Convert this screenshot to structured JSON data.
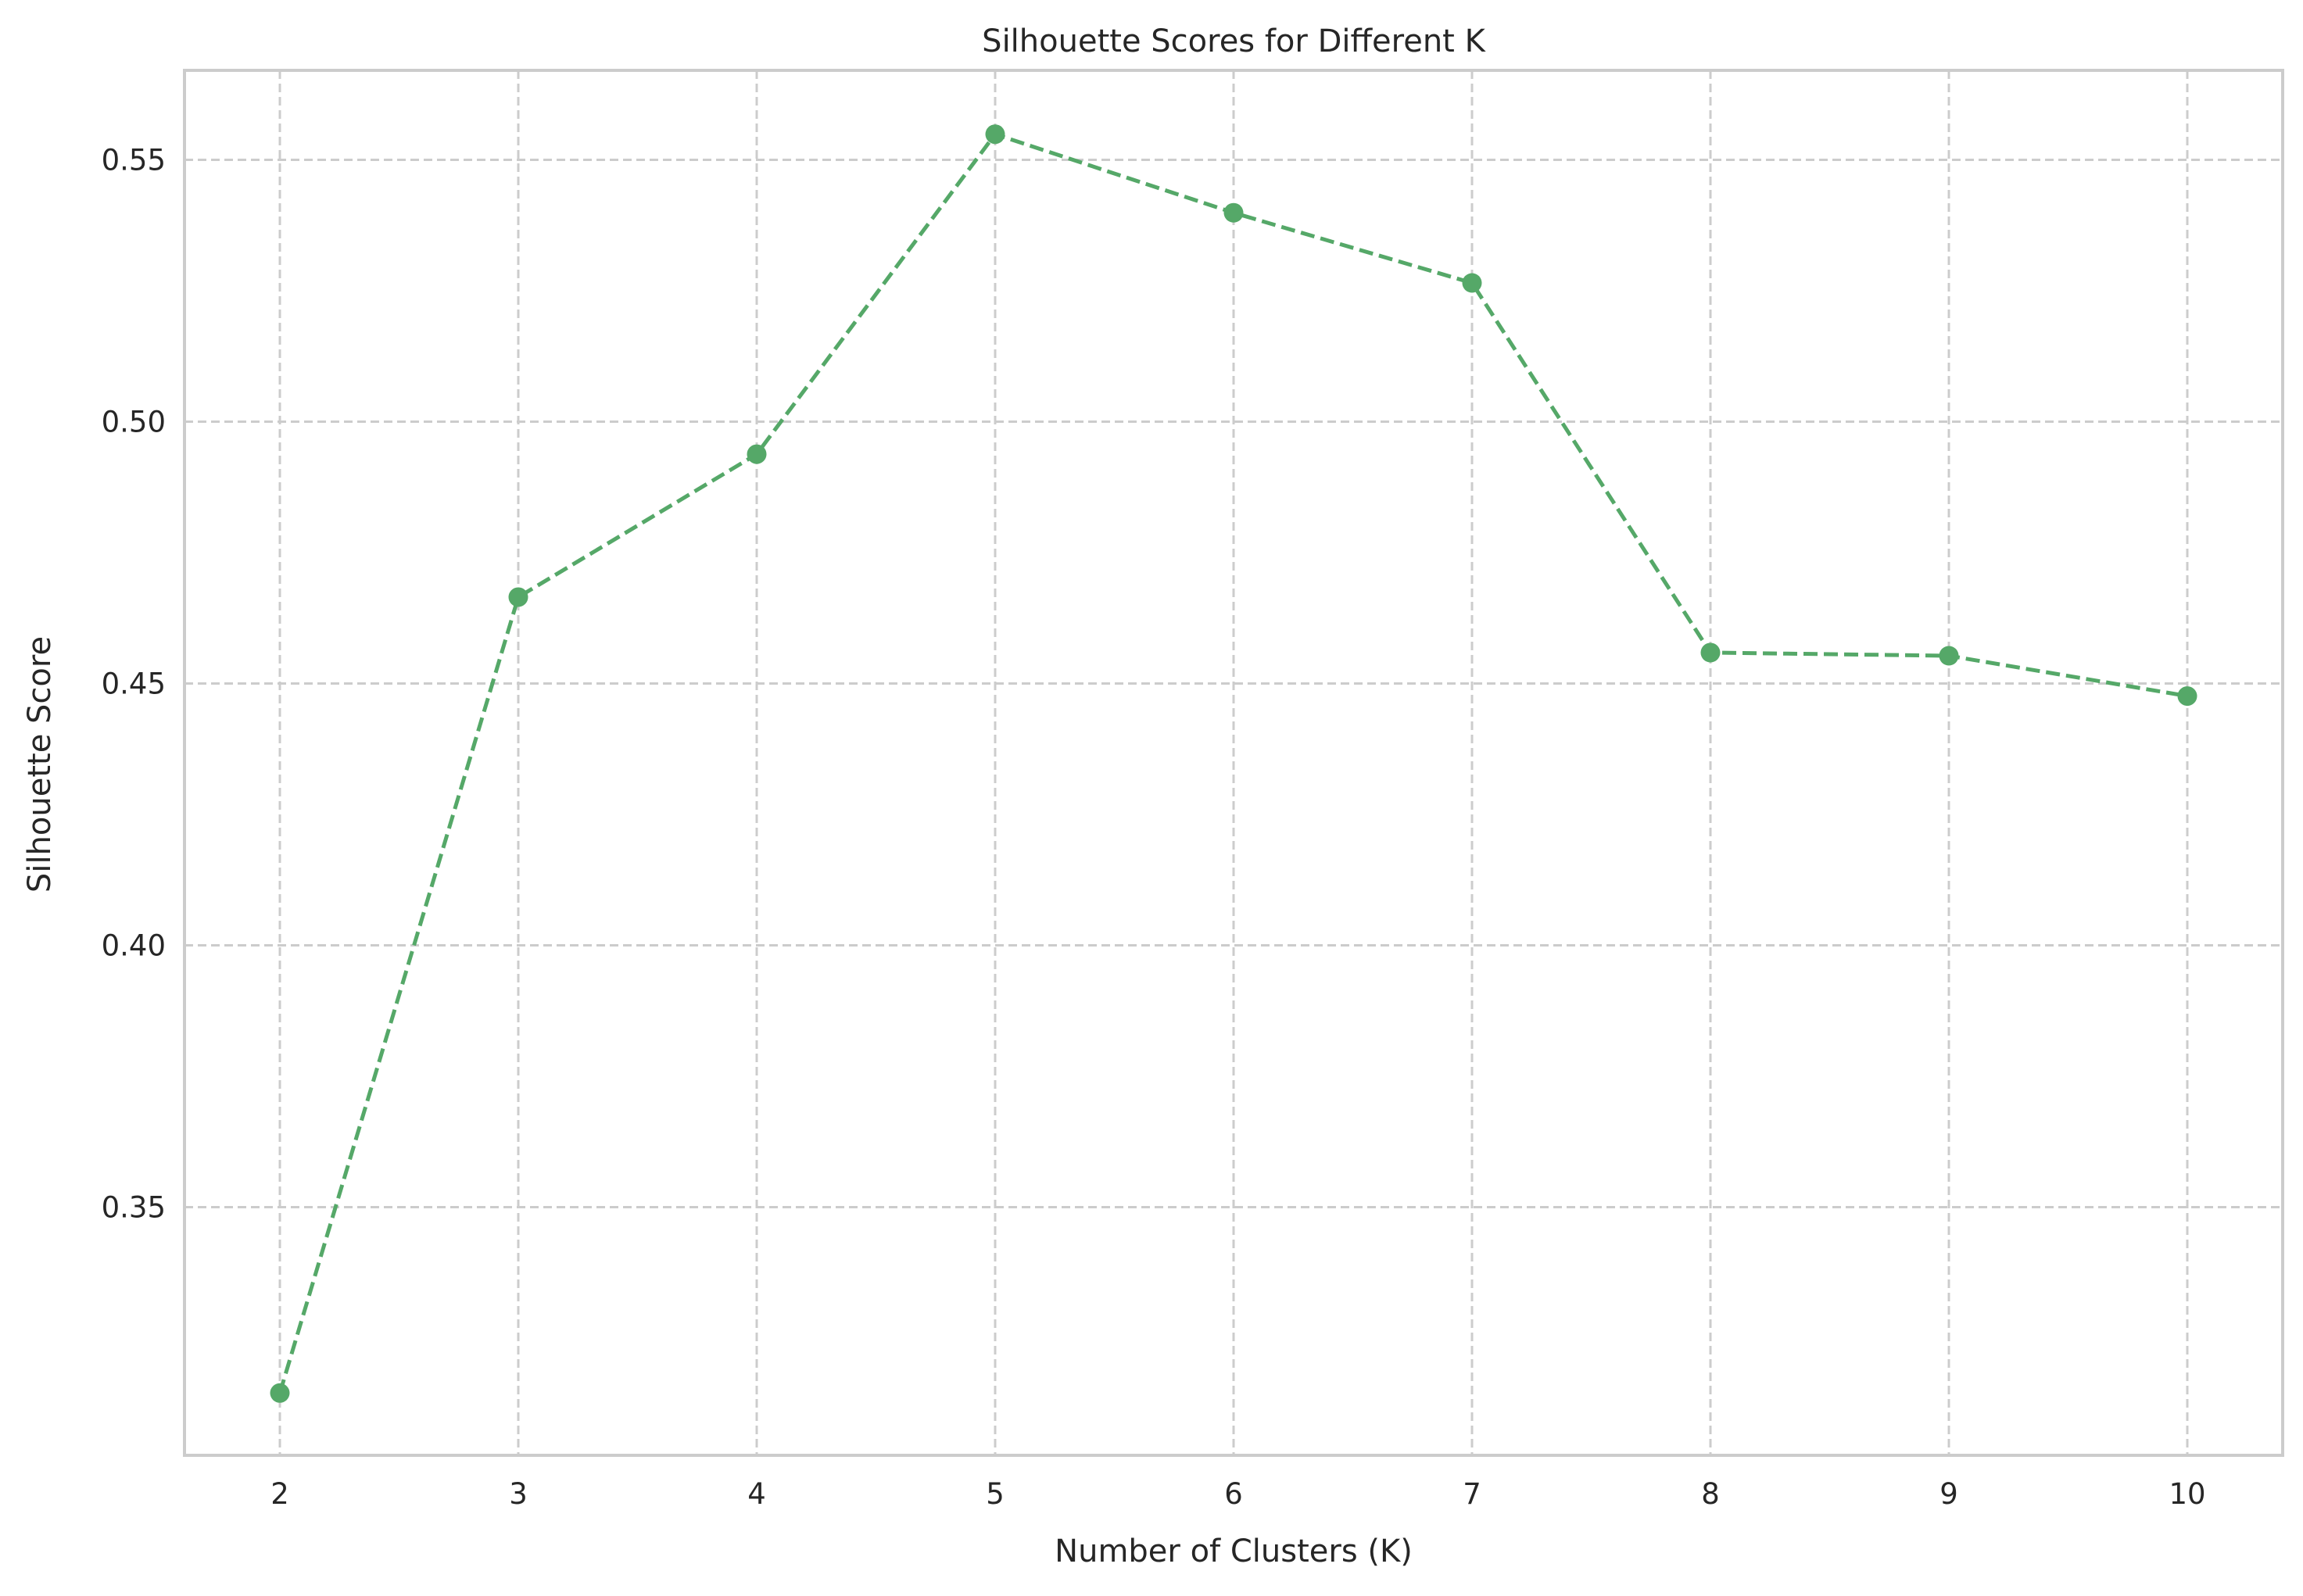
{
  "chart_data": {
    "type": "line",
    "title": "Silhouette Scores for Different K",
    "xlabel": "Number of Clusters (K)",
    "ylabel": "Silhouette Score",
    "x": [
      2,
      3,
      4,
      5,
      6,
      7,
      8,
      9,
      10
    ],
    "series": [
      {
        "values": [
          0.3145,
          0.4665,
          0.4938,
          0.5549,
          0.5399,
          0.5265,
          0.4559,
          0.4553,
          0.4476
        ],
        "color": "#55a868",
        "line_style": "dashed",
        "marker": "circle"
      }
    ],
    "xticks": [
      "2",
      "3",
      "4",
      "5",
      "6",
      "7",
      "8",
      "9",
      "10"
    ],
    "yticks": [
      "0.35",
      "0.40",
      "0.45",
      "0.50",
      "0.55"
    ],
    "xlim": [
      1.6,
      10.4
    ],
    "ylim": [
      0.3026,
      0.5671
    ],
    "grid": true,
    "grid_color": "#cccccc",
    "frame_color": "#cccccc",
    "text_color": "#262626"
  }
}
